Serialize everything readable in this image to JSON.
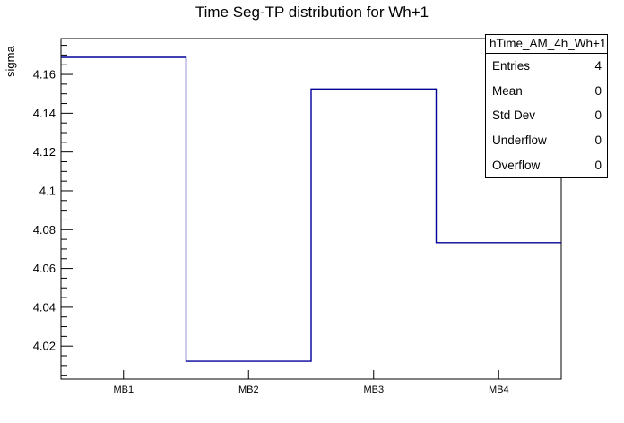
{
  "chart_data": {
    "type": "bar",
    "style": "step-histogram-outline",
    "title": "Time Seg-TP distribution for Wh+1",
    "categories": [
      "MB1",
      "MB2",
      "MB3",
      "MB4"
    ],
    "values": [
      4.1688,
      4.0122,
      4.1525,
      4.0733
    ],
    "xlabel": "",
    "ylabel": "sigma",
    "ylim": [
      4.003,
      4.1785
    ],
    "y_major_ticks": [
      4.02,
      4.04,
      4.06,
      4.08,
      4.1,
      4.12,
      4.14,
      4.16
    ],
    "y_minor_step": 0.005,
    "grid": false,
    "legend": false,
    "line_color": "#000099",
    "frame_color": "#000000",
    "background": "#ffffff"
  },
  "stats_box": {
    "header": "hTime_AM_4h_Wh+1",
    "rows": [
      {
        "label": "Entries",
        "value": "4"
      },
      {
        "label": "Mean",
        "value": "0"
      },
      {
        "label": "Std Dev",
        "value": "0"
      },
      {
        "label": "Underflow",
        "value": "0"
      },
      {
        "label": "Overflow",
        "value": "0"
      }
    ]
  }
}
